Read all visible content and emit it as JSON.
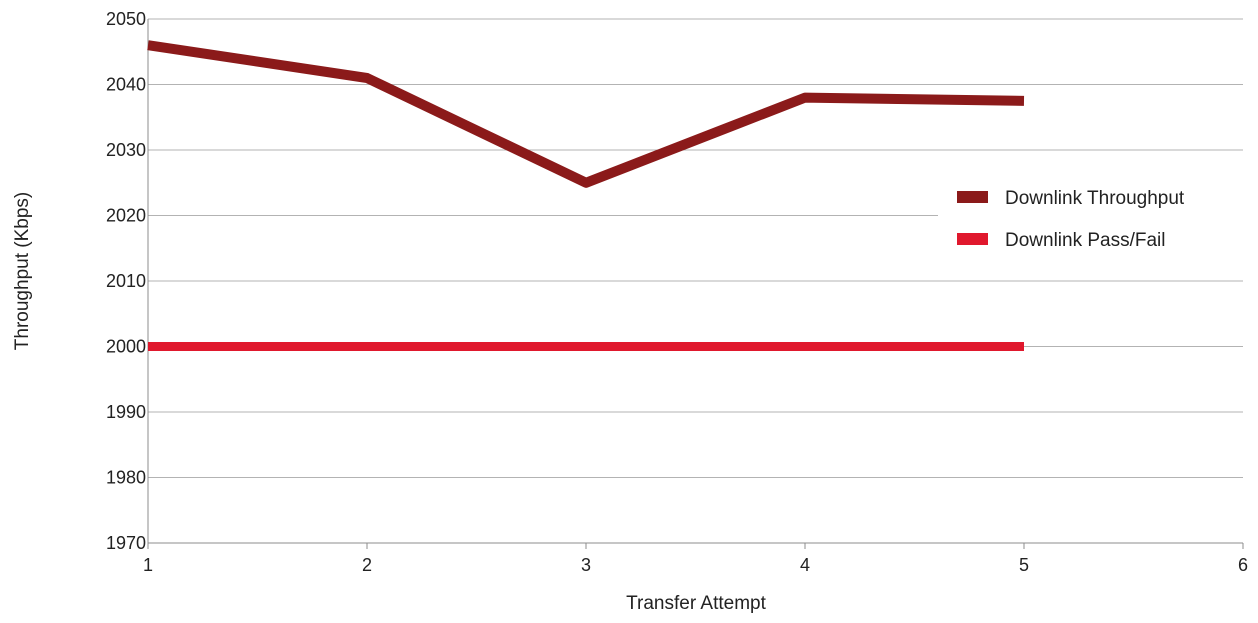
{
  "chart_data": {
    "type": "line",
    "title": "",
    "xlabel": "Transfer Attempt",
    "ylabel": "Throughput (Kbps)",
    "xlim": [
      1,
      6
    ],
    "ylim": [
      1970,
      2050
    ],
    "xticks": [
      1,
      2,
      3,
      4,
      5,
      6
    ],
    "yticks": [
      1970,
      1980,
      1990,
      2000,
      2010,
      2020,
      2030,
      2040,
      2050
    ],
    "grid": "horizontal",
    "legend_position": "right",
    "series": [
      {
        "name": "Downlink Throughput",
        "color": "#8b1a1a",
        "x": [
          1,
          2,
          3,
          4,
          5
        ],
        "y": [
          2046,
          2041,
          2025,
          2038,
          2037.5
        ]
      },
      {
        "name": "Downlink Pass/Fail",
        "color": "#e0182d",
        "x": [
          1,
          2,
          3,
          4,
          5
        ],
        "y": [
          2000,
          2000,
          2000,
          2000,
          2000
        ]
      }
    ]
  }
}
